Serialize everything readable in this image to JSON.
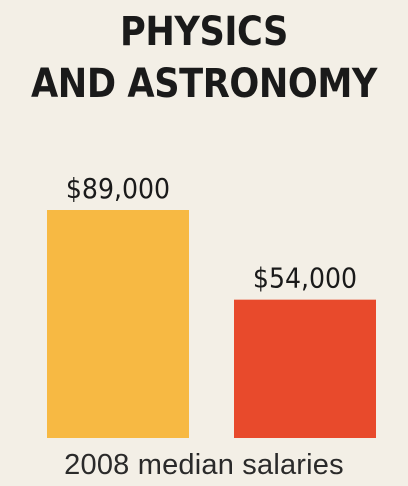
{
  "title_lines": [
    "PHYSICS",
    "AND ASTRONOMY"
  ],
  "caption": "2008 median salaries",
  "chart_data": {
    "type": "bar",
    "title": "PHYSICS AND ASTRONOMY",
    "xlabel": "2008 median salaries",
    "ylabel": "",
    "categories": [
      "",
      ""
    ],
    "values": [
      89000,
      54000
    ],
    "value_labels": [
      "$89,000",
      "$54,000"
    ],
    "colors": [
      "#f7b943",
      "#e84a2c"
    ],
    "grid": false
  }
}
